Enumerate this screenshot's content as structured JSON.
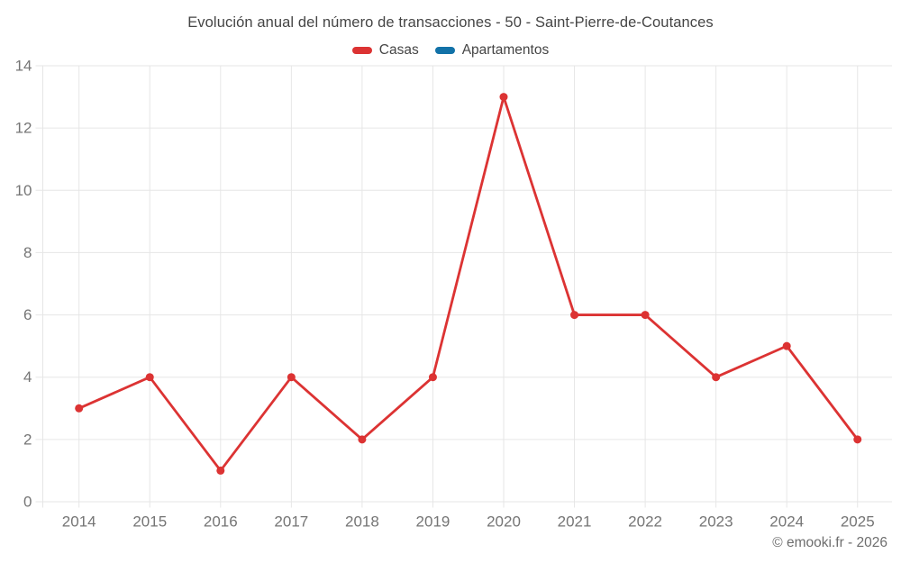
{
  "chart_data": {
    "type": "line",
    "title": "Evolución anual del número de transacciones - 50 - Saint-Pierre-de-Coutances",
    "x": [
      "2014",
      "2015",
      "2016",
      "2017",
      "2018",
      "2019",
      "2020",
      "2021",
      "2022",
      "2023",
      "2024",
      "2025"
    ],
    "series": [
      {
        "name": "Casas",
        "color": "#dc3333",
        "values": [
          3,
          4,
          1,
          4,
          2,
          4,
          13,
          6,
          6,
          4,
          5,
          2
        ]
      },
      {
        "name": "Apartamentos",
        "color": "#1272a8",
        "values": []
      }
    ],
    "xlabel": "",
    "ylabel": "",
    "ylim": [
      0,
      14
    ],
    "yticks": [
      0,
      2,
      4,
      6,
      8,
      10,
      12,
      14
    ],
    "grid": true,
    "legend_position": "top"
  },
  "footer": {
    "copyright": "© emooki.fr - 2026"
  },
  "colors": {
    "grid": "#e6e6e6",
    "axis_label": "#757575",
    "title_text": "#454545",
    "footer_text": "#6e6e6e"
  }
}
